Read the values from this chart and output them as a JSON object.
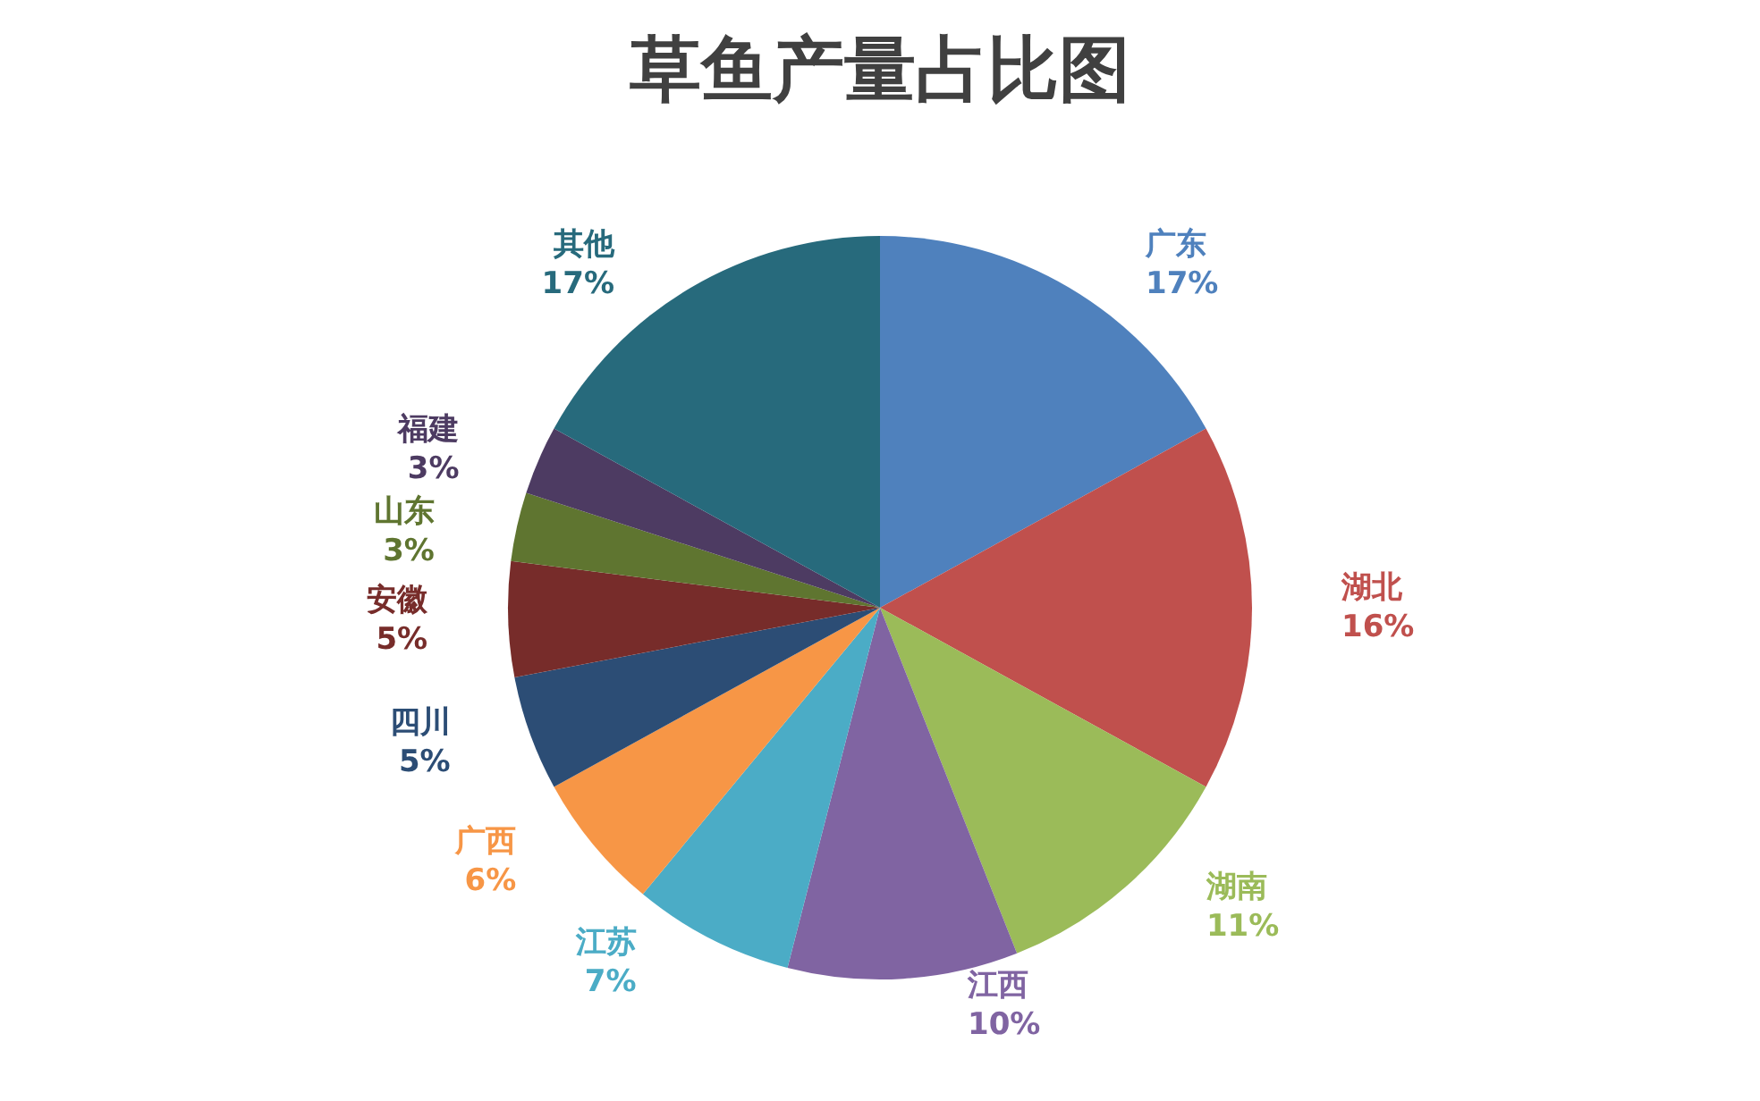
{
  "chart_data": {
    "type": "pie",
    "title": "草鱼产量占比图",
    "categories": [
      "广东",
      "湖北",
      "湖南",
      "江西",
      "江苏",
      "广西",
      "四川",
      "安徽",
      "山东",
      "福建",
      "其他"
    ],
    "values": [
      17,
      16,
      11,
      10,
      7,
      6,
      5,
      5,
      3,
      3,
      17
    ],
    "colors": [
      "#4f81bd",
      "#c0504d",
      "#9bbb59",
      "#8064a2",
      "#4bacc6",
      "#f79646",
      "#2c4d75",
      "#772c2a",
      "#5f7530",
      "#4d3b62",
      "#276a7c"
    ],
    "value_labels": [
      "17%",
      "16%",
      "11%",
      "10%",
      "7%",
      "6%",
      "5%",
      "5%",
      "3%",
      "3%",
      "17%"
    ],
    "legend": false
  }
}
